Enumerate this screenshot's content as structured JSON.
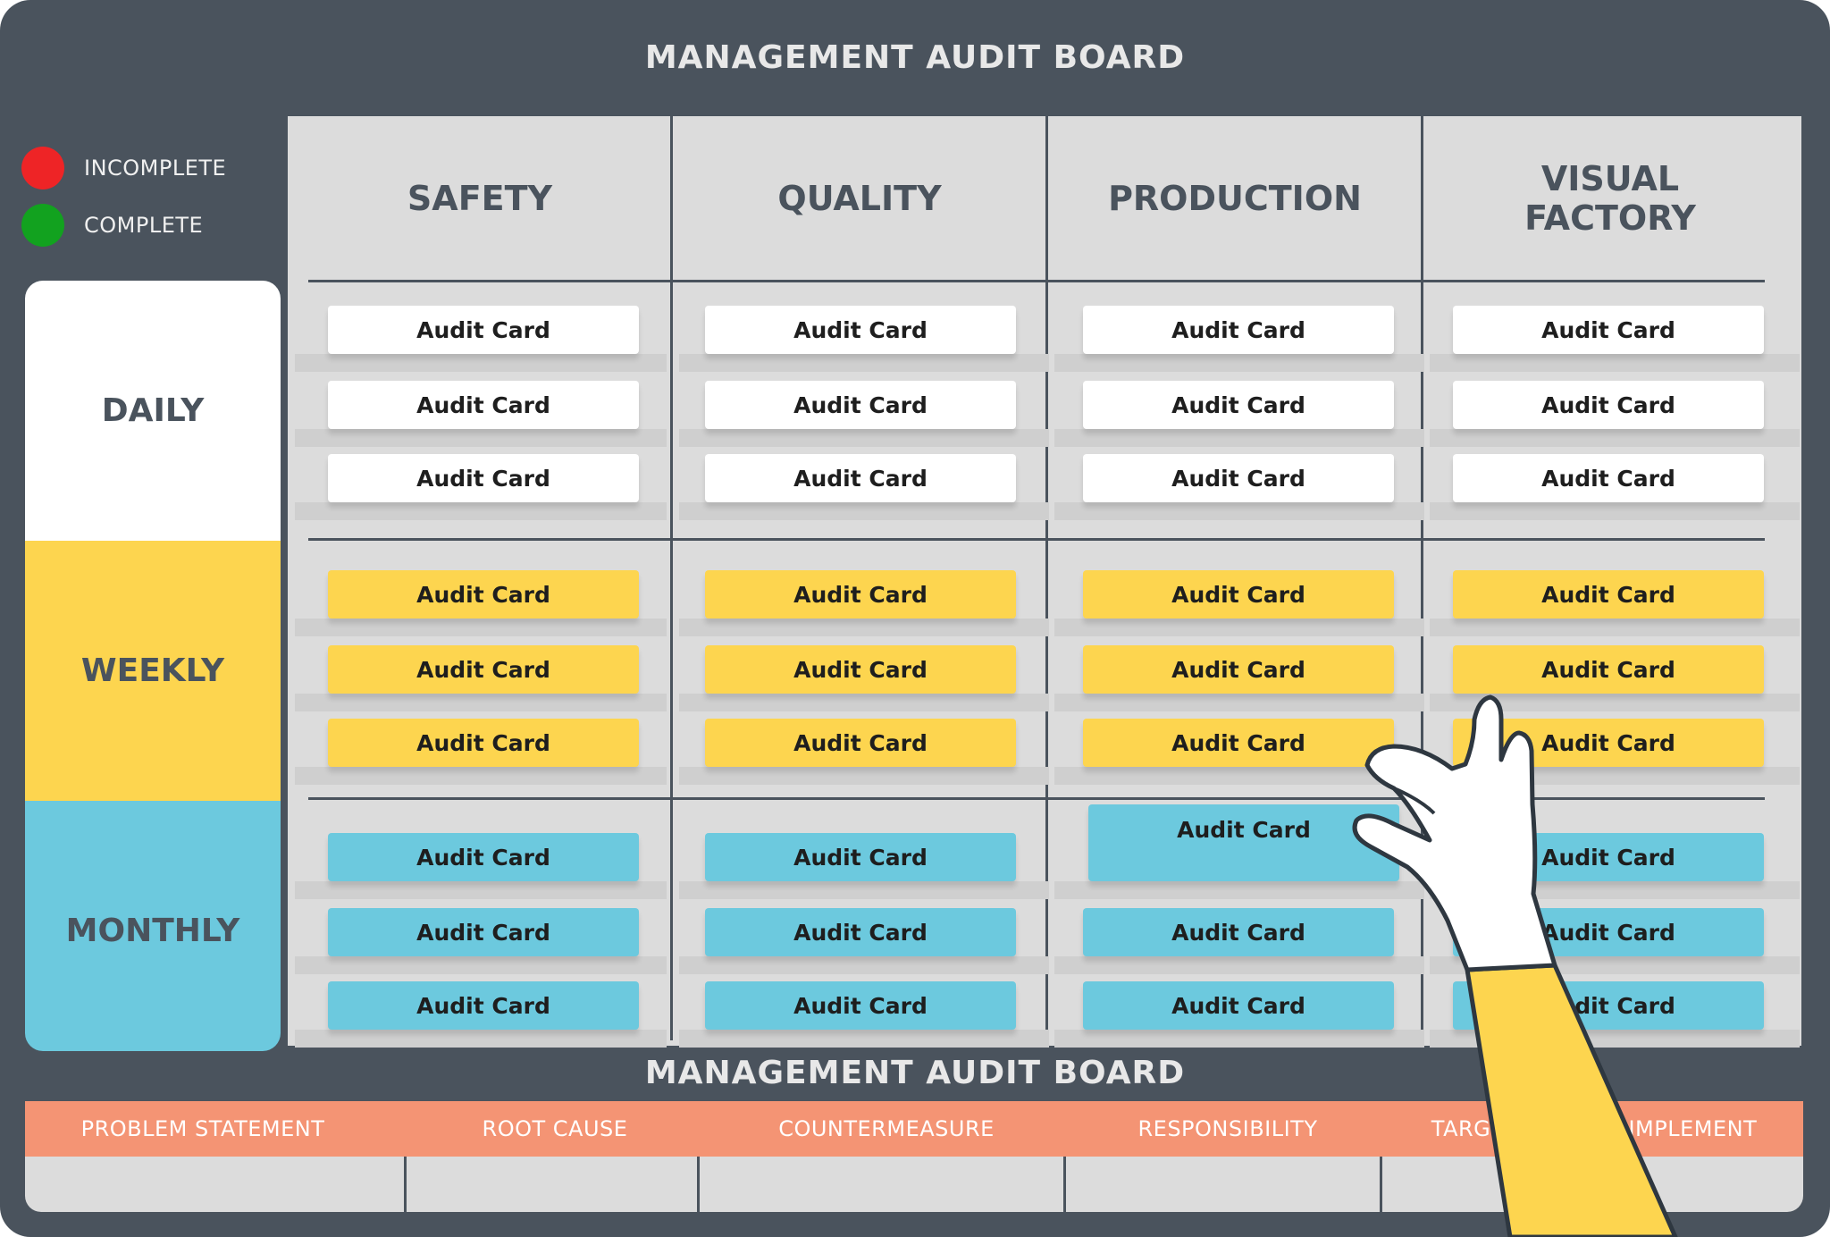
{
  "board": {
    "title": "MANAGEMENT AUDIT BOARD",
    "bottom_title": "MANAGEMENT AUDIT BOARD"
  },
  "legend": [
    {
      "label": "INCOMPLETE",
      "color": "#ee2426"
    },
    {
      "label": "COMPLETE",
      "color": "#12a21f"
    }
  ],
  "frequencies": [
    {
      "label": "DAILY",
      "color": "#ffffff",
      "card_color": "white"
    },
    {
      "label": "WEEKLY",
      "color": "#fdd54f",
      "card_color": "yellow"
    },
    {
      "label": "MONTHLY",
      "color": "#6cc9de",
      "card_color": "blue"
    }
  ],
  "columns": [
    {
      "label": "SAFETY"
    },
    {
      "label": "QUALITY"
    },
    {
      "label": "PRODUCTION"
    },
    {
      "label": "VISUAL FACTORY"
    }
  ],
  "card_label": "Audit Card",
  "cards_per_cell": 3,
  "lifted_card": {
    "frequency": "MONTHLY",
    "column": "PRODUCTION",
    "index": 0
  },
  "table": {
    "headers": [
      "PROBLEM STATEMENT",
      "ROOT CAUSE",
      "COUNTERMEASURE",
      "RESPONSIBILITY",
      "TARGET DATE TO IMPLEMENT"
    ]
  },
  "colors": {
    "board": "#4a535d",
    "grid": "#dcdcdc",
    "table_header": "#f49474",
    "hand_sleeve": "#fdd54f"
  },
  "icons": [
    "hand-icon"
  ]
}
